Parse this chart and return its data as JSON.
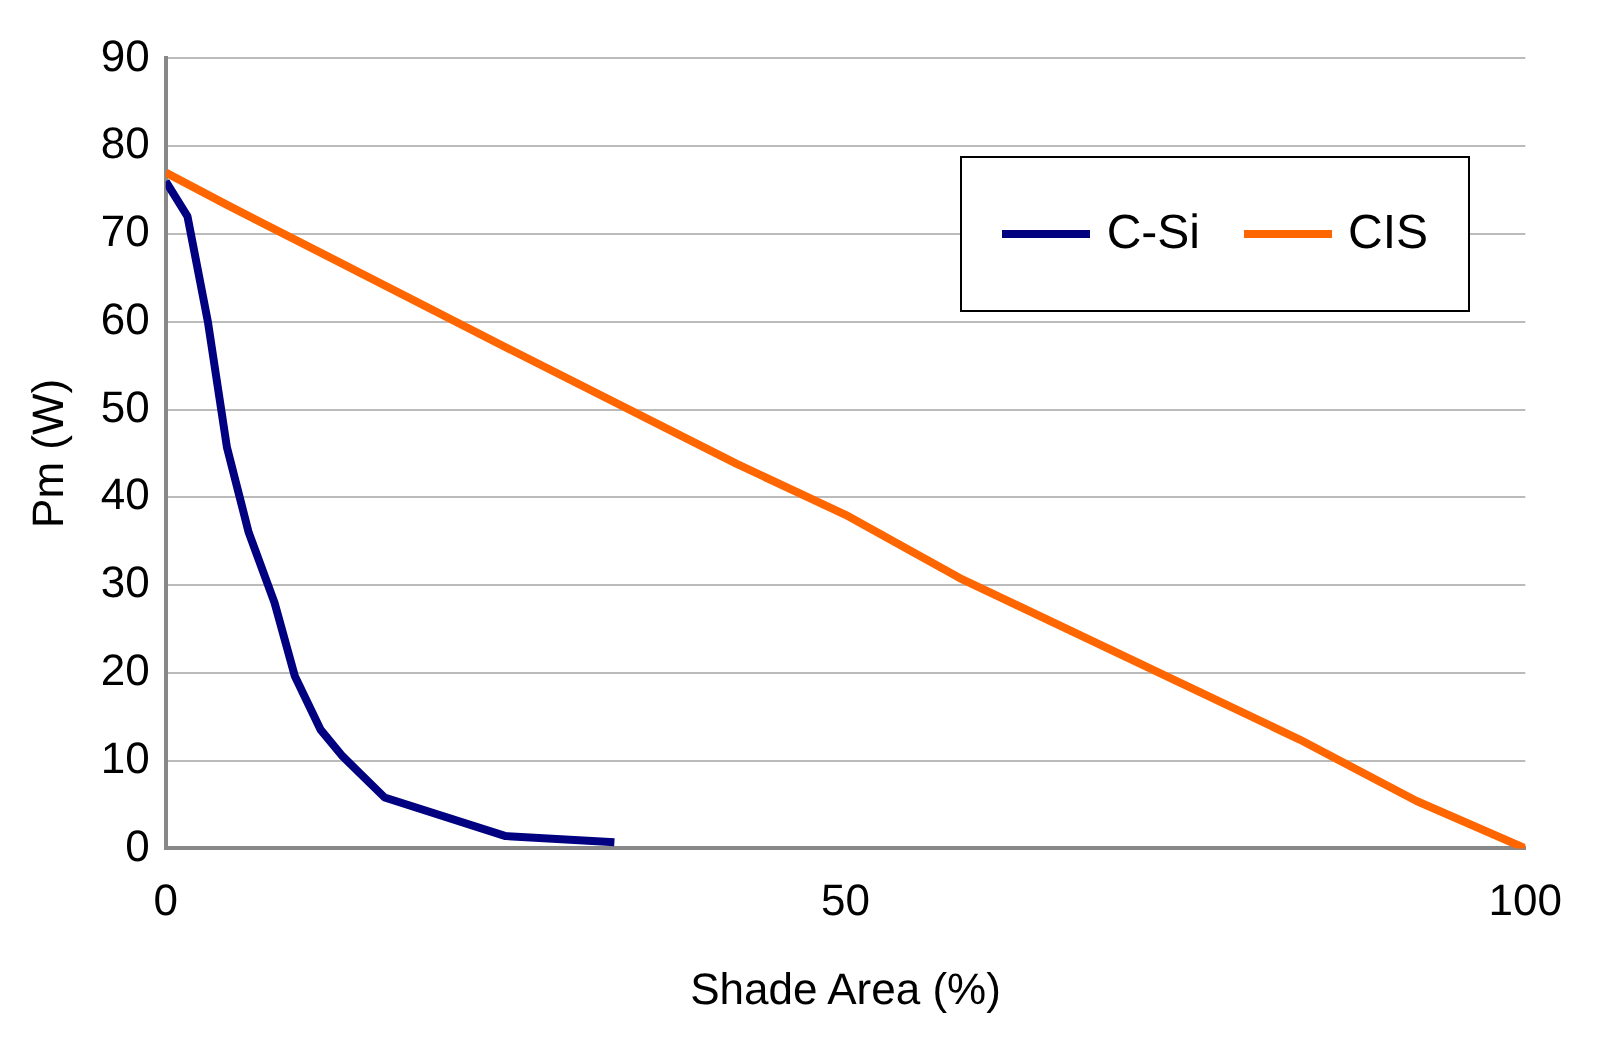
{
  "chart_data": {
    "type": "line",
    "xlabel": "Shade Area (%)",
    "ylabel": "Pm (W)",
    "xlim": [
      0,
      100
    ],
    "xticks": [
      0,
      50,
      100
    ],
    "ylim": [
      0,
      90
    ],
    "yticks": [
      0,
      10,
      20,
      30,
      40,
      50,
      60,
      70,
      80,
      90
    ],
    "grid": "y",
    "legend": "top right",
    "marker": "none",
    "line_style": "solid",
    "series": [
      {
        "name": "C-Si",
        "color": "#000080",
        "x": [
          0,
          1.6,
          3.1,
          4.5,
          6.1,
          8,
          9.5,
          11.4,
          13,
          16.1,
          25,
          33
        ],
        "values": [
          76,
          72,
          60,
          45.7,
          36,
          28,
          19.6,
          13.5,
          10.5,
          5.8,
          1.4,
          0.7
        ]
      },
      {
        "name": "CIS",
        "color": "#ff6600",
        "x": [
          0,
          4.4,
          25,
          42,
          50,
          58.4,
          83.4,
          92,
          100
        ],
        "values": [
          77,
          73.4,
          57.1,
          43.8,
          38,
          30.8,
          12.4,
          5.4,
          0
        ]
      }
    ]
  }
}
